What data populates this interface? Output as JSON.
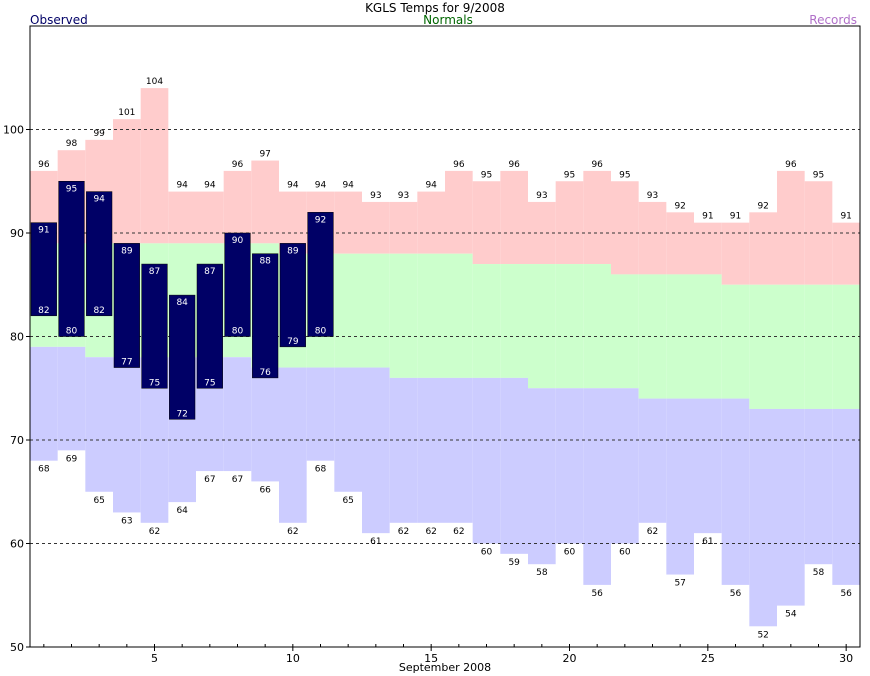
{
  "chart_data": {
    "type": "bar",
    "title": "KGLS Temps for 9/2008",
    "legend": {
      "observed": "Observed",
      "normals": "Normals",
      "records": "Records"
    },
    "xlabel": "September 2008",
    "ylabel": "",
    "xlim": [
      0.5,
      30.5
    ],
    "ylim": [
      50,
      110
    ],
    "x_ticks": [
      5,
      10,
      15,
      20,
      25,
      30
    ],
    "y_ticks": [
      50,
      60,
      70,
      80,
      90,
      100
    ],
    "grid_dashed_at": [
      60,
      70,
      80,
      90,
      100
    ],
    "days": [
      1,
      2,
      3,
      4,
      5,
      6,
      7,
      8,
      9,
      10,
      11,
      12,
      13,
      14,
      15,
      16,
      17,
      18,
      19,
      20,
      21,
      22,
      23,
      24,
      25,
      26,
      27,
      28,
      29,
      30
    ],
    "series": [
      {
        "name": "Records",
        "record_high": [
          96,
          98,
          99,
          101,
          104,
          94,
          94,
          96,
          97,
          94,
          94,
          94,
          93,
          93,
          94,
          96,
          95,
          96,
          93,
          95,
          96,
          95,
          93,
          92,
          91,
          91,
          92,
          96,
          95,
          91
        ],
        "record_low": [
          68,
          69,
          65,
          63,
          62,
          64,
          67,
          67,
          66,
          62,
          68,
          65,
          61,
          62,
          62,
          62,
          60,
          59,
          58,
          60,
          56,
          60,
          62,
          57,
          61,
          56,
          52,
          54,
          58,
          56
        ]
      },
      {
        "name": "Normals",
        "normal_high": [
          89,
          89,
          89,
          89,
          89,
          89,
          89,
          89,
          89,
          88,
          88,
          88,
          88,
          88,
          88,
          88,
          87,
          87,
          87,
          87,
          87,
          86,
          86,
          86,
          86,
          85,
          85,
          85,
          85,
          85
        ],
        "normal_low": [
          79,
          79,
          78,
          78,
          78,
          78,
          78,
          78,
          77,
          77,
          77,
          77,
          77,
          76,
          76,
          76,
          76,
          76,
          75,
          75,
          75,
          75,
          74,
          74,
          74,
          74,
          73,
          73,
          73,
          73
        ]
      },
      {
        "name": "Observed",
        "high": [
          91,
          95,
          94,
          89,
          87,
          84,
          87,
          90,
          88,
          89,
          92
        ],
        "low": [
          82,
          80,
          82,
          77,
          75,
          72,
          75,
          80,
          76,
          79,
          80
        ]
      }
    ],
    "colors": {
      "observed": "#000066",
      "normals": "#ccffcc",
      "record_high_band": "#ffcccc",
      "record_low_band": "#ccccff",
      "legend_observed": "#000066",
      "legend_normals": "#006600",
      "legend_records": "#b070c8",
      "observed_label": "#ffffff"
    }
  }
}
